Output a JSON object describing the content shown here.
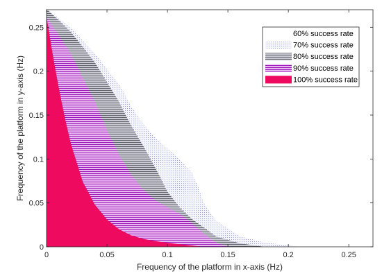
{
  "chart_data": {
    "type": "area",
    "xlabel": "Frequency of the platform in x-axis (Hz)",
    "ylabel": "Frequency of the platform in y-axis (Hz)",
    "xlim": [
      0,
      0.27
    ],
    "ylim": [
      0,
      0.27
    ],
    "xticks": [
      0,
      0.05,
      0.1,
      0.15,
      0.2,
      0.25
    ],
    "xtick_labels": [
      "0",
      "0.05",
      "0.1",
      "0.15",
      "0.2",
      "0.25"
    ],
    "yticks": [
      0,
      0.05,
      0.1,
      0.15,
      0.2,
      0.25
    ],
    "ytick_labels": [
      "0",
      "0.05",
      "0.1",
      "0.15",
      "0.2",
      "0.25"
    ],
    "legend_position": "top-right",
    "series": [
      {
        "name": "60% success rate",
        "color": "#ffffff",
        "pattern": "none",
        "x": [
          0,
          0.02,
          0.04,
          0.06,
          0.08,
          0.1,
          0.12,
          0.14,
          0.16,
          0.18,
          0.2,
          0.22,
          0.24,
          0.26,
          0.27
        ],
        "y": [
          0.271,
          0.255,
          0.232,
          0.2,
          0.165,
          0.13,
          0.09,
          0.05,
          0.025,
          0.012,
          0.006,
          0.003,
          0.0015,
          0.0005,
          0
        ]
      },
      {
        "name": "70% success rate",
        "color": "#b8bce8",
        "pattern": "dotted",
        "x": [
          0,
          0.02,
          0.04,
          0.06,
          0.07,
          0.08,
          0.09,
          0.1,
          0.11,
          0.12,
          0.125,
          0.13,
          0.14,
          0.16,
          0.18,
          0.2,
          0.21
        ],
        "y": [
          0.271,
          0.25,
          0.22,
          0.185,
          0.16,
          0.14,
          0.124,
          0.112,
          0.1,
          0.085,
          0.07,
          0.05,
          0.03,
          0.012,
          0.005,
          0.0015,
          0
        ]
      },
      {
        "name": "80% success rate",
        "color": "#7a7a86",
        "pattern": "hatched",
        "x": [
          0,
          0.02,
          0.04,
          0.06,
          0.07,
          0.08,
          0.09,
          0.1,
          0.11,
          0.12,
          0.13,
          0.14,
          0.16,
          0.18
        ],
        "y": [
          0.271,
          0.245,
          0.21,
          0.165,
          0.138,
          0.115,
          0.09,
          0.063,
          0.045,
          0.032,
          0.022,
          0.012,
          0.004,
          0
        ]
      },
      {
        "name": "90% success rate",
        "color": "#a020c0",
        "pattern": "hatched",
        "x": [
          0,
          0.02,
          0.04,
          0.05,
          0.06,
          0.07,
          0.08,
          0.09,
          0.1,
          0.11,
          0.12,
          0.13,
          0.14,
          0.15
        ],
        "y": [
          0.262,
          0.22,
          0.165,
          0.133,
          0.105,
          0.082,
          0.065,
          0.053,
          0.045,
          0.038,
          0.027,
          0.015,
          0.005,
          0
        ]
      },
      {
        "name": "100% success rate",
        "color": "#ee0a5f",
        "pattern": "solid",
        "x": [
          0,
          0.005,
          0.01,
          0.015,
          0.02,
          0.03,
          0.04,
          0.05,
          0.06,
          0.07,
          0.08,
          0.09,
          0.1,
          0.11,
          0.12,
          0.13
        ],
        "y": [
          0.262,
          0.22,
          0.182,
          0.148,
          0.118,
          0.074,
          0.048,
          0.031,
          0.02,
          0.013,
          0.009,
          0.0065,
          0.0045,
          0.003,
          0.0015,
          0
        ]
      }
    ]
  }
}
